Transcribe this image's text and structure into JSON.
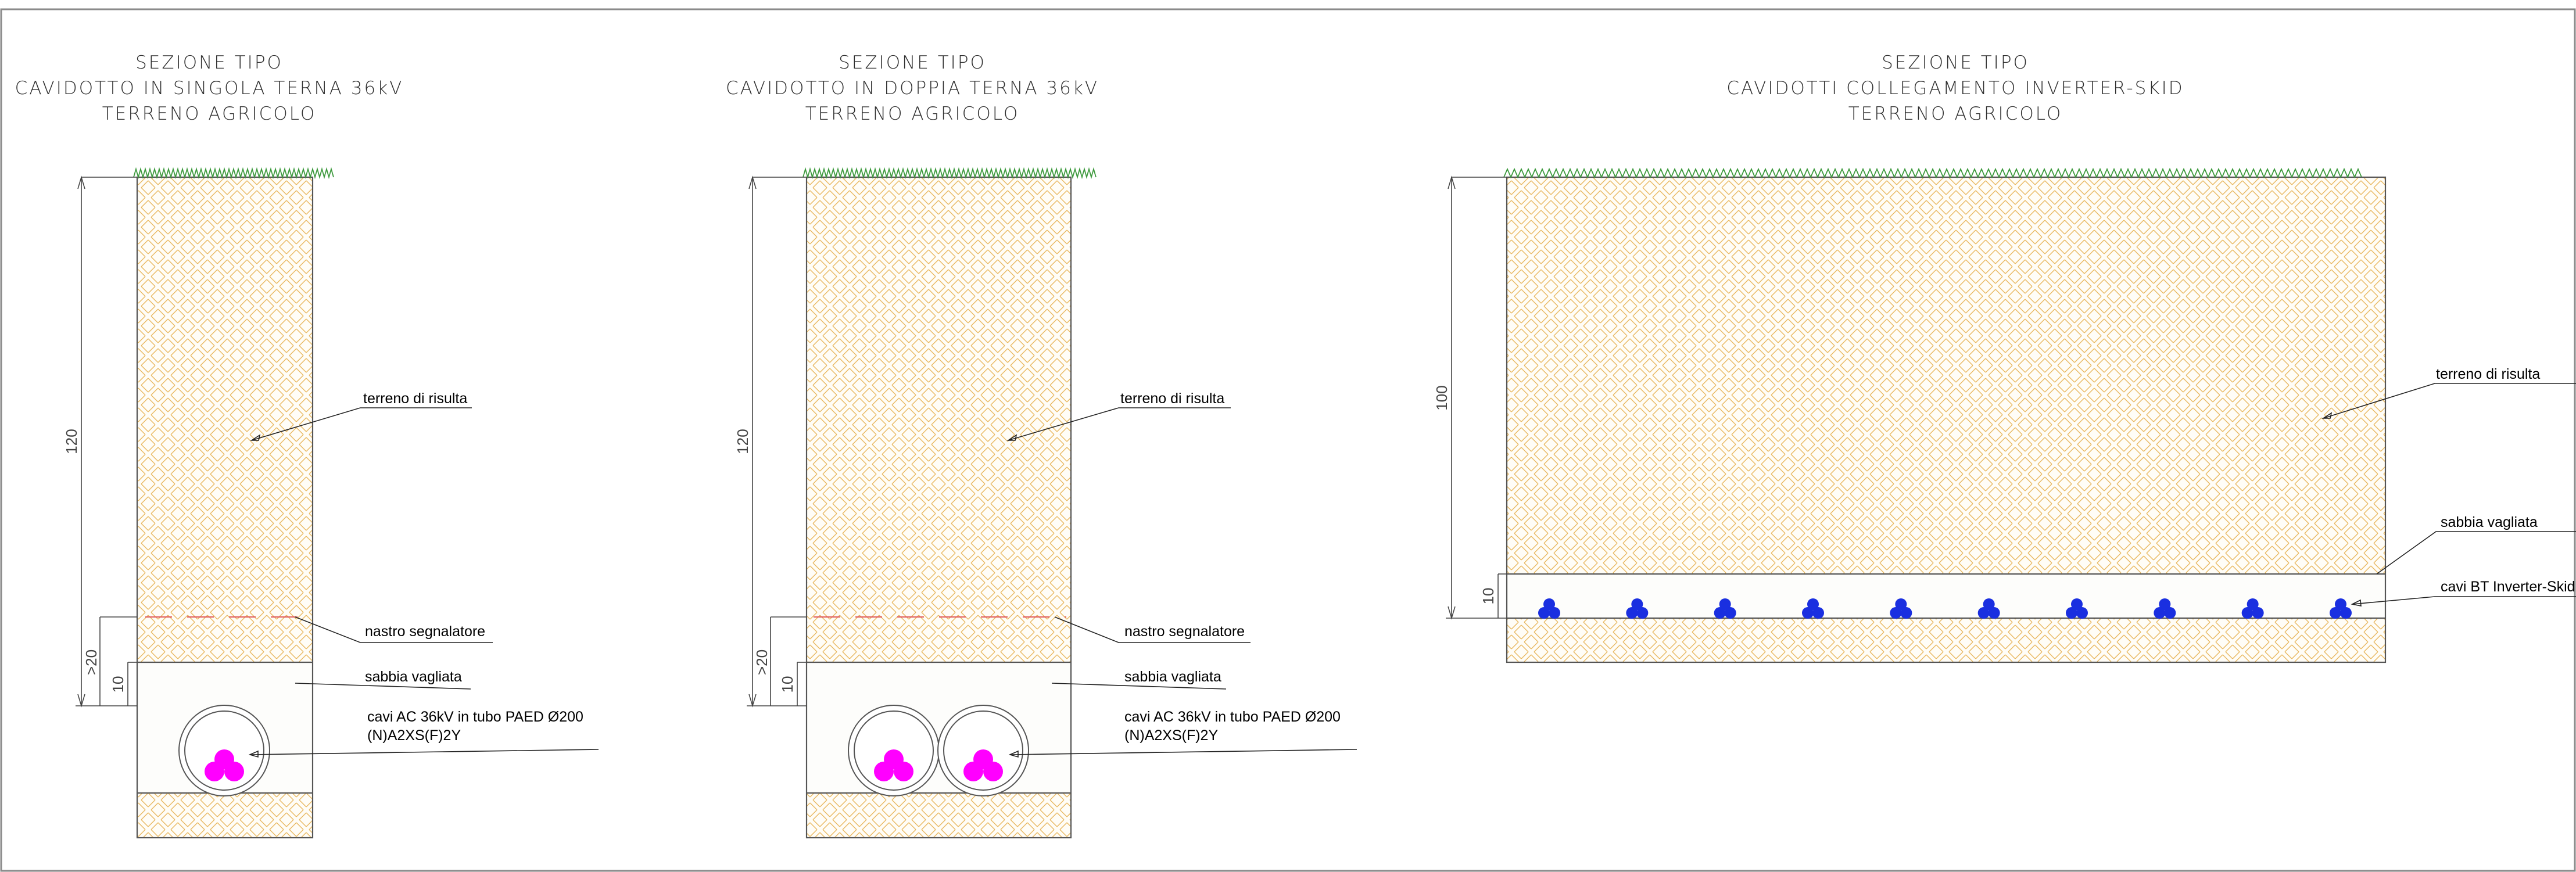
{
  "sections": [
    {
      "title_lines": [
        "SEZIONE TIPO",
        "CAVIDOTTO IN SINGOLA TERNA 36kV",
        "TERRENO AGRICOLO"
      ],
      "dimensions": {
        "depth": "120",
        "sand_over": ">20",
        "bedding": "10"
      },
      "labels": {
        "backfill": "terreno di risulta",
        "tape": "nastro segnalatore",
        "sand": "sabbia vagliata",
        "cable_line1": "cavi AC 36kV in tubo PAED Ø200",
        "cable_line2": "(N)A2XS(F)2Y"
      },
      "pipe_count": 1,
      "cable_color": "#ff00ff"
    },
    {
      "title_lines": [
        "SEZIONE TIPO",
        "CAVIDOTTO IN DOPPIA TERNA 36kV",
        "TERRENO AGRICOLO"
      ],
      "dimensions": {
        "depth": "120",
        "sand_over": ">20",
        "bedding": "10"
      },
      "labels": {
        "backfill": "terreno di risulta",
        "tape": "nastro segnalatore",
        "sand": "sabbia vagliata",
        "cable_line1": "cavi AC 36kV in tubo PAED Ø200",
        "cable_line2": "(N)A2XS(F)2Y"
      },
      "pipe_count": 2,
      "cable_color": "#ff00ff"
    },
    {
      "title_lines": [
        "SEZIONE TIPO",
        "CAVIDOTTI COLLEGAMENTO INVERTER-SKID",
        "TERRENO AGRICOLO"
      ],
      "dimensions": {
        "depth": "100",
        "bedding": "10"
      },
      "labels": {
        "backfill": "terreno di risulta",
        "sand": "sabbia vagliata",
        "cables": "cavi BT Inverter-Skid"
      },
      "cable_groups": 10,
      "cable_color": "#1a2fe0"
    }
  ],
  "colors": {
    "soil_hatch": "#e8b860",
    "sand_fill": "#fdfdfb",
    "grass": "#3e9a3e",
    "warning_tape": "#e05a5a"
  }
}
